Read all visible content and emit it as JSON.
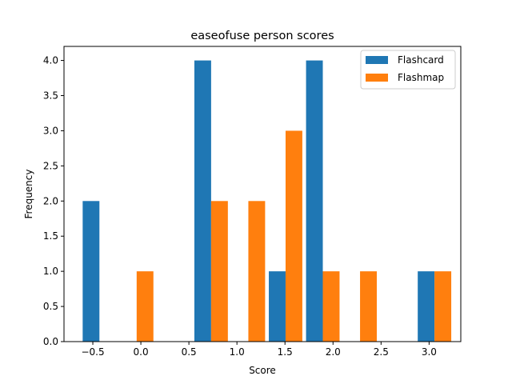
{
  "chart_data": {
    "type": "bar",
    "title": "easeofuse person scores",
    "xlabel": "Score",
    "ylabel": "Frequency",
    "xlim": [
      -0.8,
      3.33
    ],
    "ylim": [
      0,
      4.2
    ],
    "x_ticks": [
      -0.5,
      0.0,
      0.5,
      1.0,
      1.5,
      2.0,
      2.5,
      3.0
    ],
    "x_tick_labels": [
      "−0.5",
      "0.0",
      "0.5",
      "1.0",
      "1.5",
      "2.0",
      "2.5",
      "3.0"
    ],
    "y_ticks": [
      0.0,
      0.5,
      1.0,
      1.5,
      2.0,
      2.5,
      3.0,
      3.5,
      4.0
    ],
    "y_tick_labels": [
      "0.0",
      "0.5",
      "1.0",
      "1.5",
      "2.0",
      "2.5",
      "3.0",
      "3.5",
      "4.0"
    ],
    "bin_edges": [
      -0.625,
      -0.2375,
      0.15,
      0.5375,
      0.925,
      1.3125,
      1.7,
      2.0875,
      2.475,
      2.8625,
      3.25
    ],
    "series": [
      {
        "name": "Flashcard",
        "color": "#1f77b4",
        "values": [
          2,
          0,
          0,
          4,
          0,
          1,
          4,
          0,
          0,
          1
        ]
      },
      {
        "name": "Flashmap",
        "color": "#ff7f0e",
        "values": [
          0,
          1,
          0,
          2,
          2,
          3,
          1,
          1,
          0,
          1
        ]
      }
    ],
    "legend_position": "top-right",
    "grid": false
  }
}
